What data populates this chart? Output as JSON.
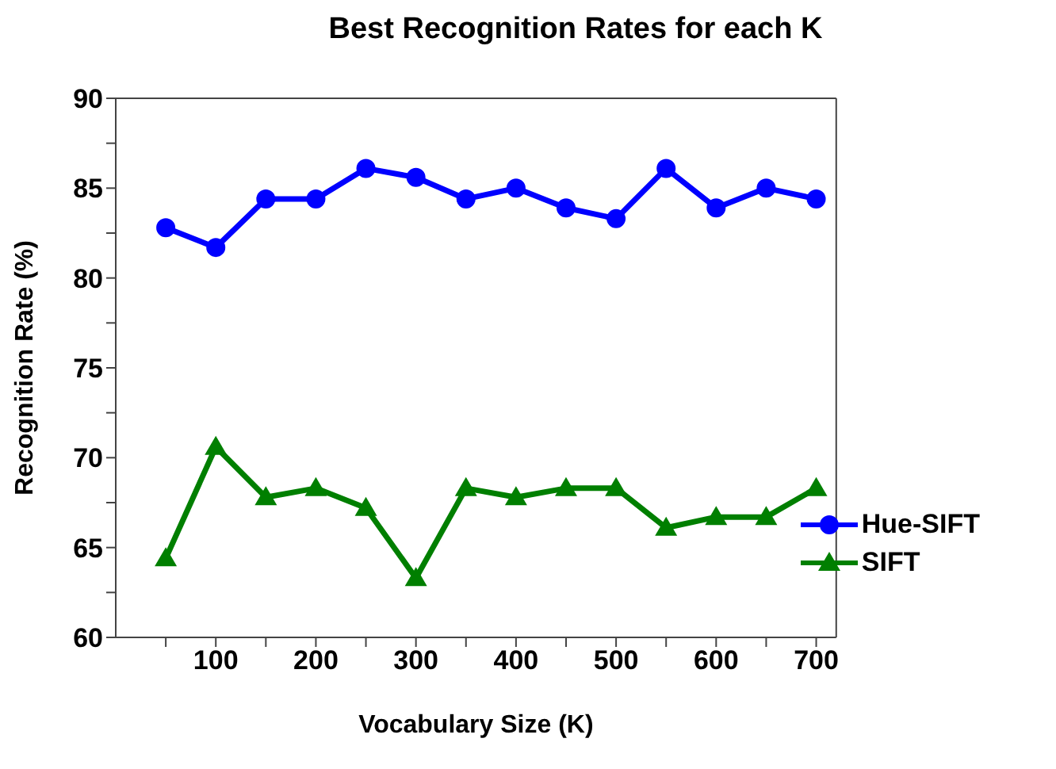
{
  "chart_data": {
    "type": "line",
    "title": "Best Recognition Rates for each K",
    "xlabel": "Vocabulary Size (K)",
    "ylabel": "Recognition Rate (%)",
    "x": [
      50,
      100,
      150,
      200,
      250,
      300,
      350,
      400,
      450,
      500,
      550,
      600,
      650,
      700
    ],
    "series": [
      {
        "name": "Hue-SIFT",
        "color": "#0000ff",
        "marker": "circle",
        "values": [
          82.8,
          81.7,
          84.4,
          84.4,
          86.1,
          85.6,
          84.4,
          85.0,
          83.9,
          83.3,
          86.1,
          83.9,
          85.0,
          84.4
        ]
      },
      {
        "name": "SIFT",
        "color": "#007f00",
        "marker": "triangle",
        "values": [
          64.4,
          70.6,
          67.8,
          68.3,
          67.2,
          63.3,
          68.3,
          67.8,
          68.3,
          68.3,
          66.1,
          66.7,
          66.7,
          68.3
        ]
      }
    ],
    "xlim": [
      0,
      720
    ],
    "xticks": [
      {
        "value": 50,
        "label": null
      },
      100,
      {
        "value": 150,
        "label": null
      },
      200,
      {
        "value": 250,
        "label": null
      },
      300,
      {
        "value": 350,
        "label": null
      },
      400,
      {
        "value": 450,
        "label": null
      },
      500,
      {
        "value": 550,
        "label": null
      },
      600,
      {
        "value": 650,
        "label": null
      },
      700
    ],
    "ylim": [
      60,
      90
    ],
    "yticks": [
      60,
      {
        "value": 62.5,
        "label": null
      },
      65,
      {
        "value": 67.5,
        "label": null
      },
      70,
      {
        "value": 72.5,
        "label": null
      },
      75,
      {
        "value": 77.5,
        "label": null
      },
      80,
      {
        "value": 82.5,
        "label": null
      },
      85,
      {
        "value": 87.5,
        "label": null
      },
      90
    ],
    "grid": false,
    "legend": "bottom right",
    "line_style": "solid"
  }
}
